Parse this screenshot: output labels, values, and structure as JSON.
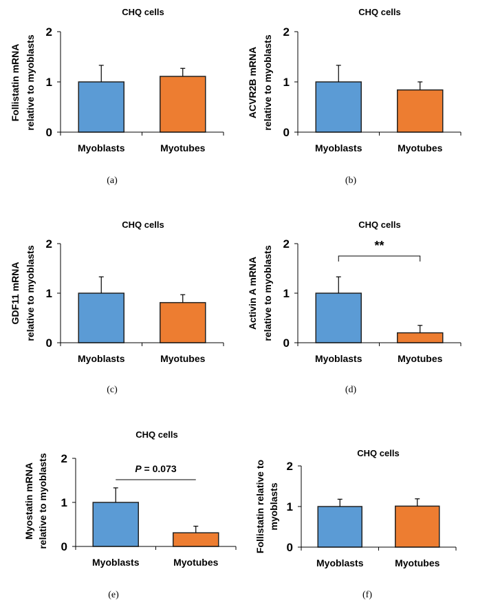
{
  "colors": {
    "myoblasts": "#5B9BD5",
    "myotubes": "#ED7D31",
    "axis": "#000000"
  },
  "chart_data": [
    {
      "type": "bar",
      "panel": "(a)",
      "title": "CHQ cells",
      "ylabel": [
        "Follistatin mRNA",
        "relative to myoblasts"
      ],
      "categories": [
        "Myoblasts",
        "Myotubes"
      ],
      "values": [
        1.0,
        1.11
      ],
      "errors": [
        0.33,
        0.16
      ],
      "ylim": [
        0,
        2
      ],
      "yticks": [
        "0",
        "1",
        "2"
      ],
      "annotation": null
    },
    {
      "type": "bar",
      "panel": "(b)",
      "title": "CHQ cells",
      "ylabel": [
        "ACVR2B mRNA",
        "relative to myoblasts"
      ],
      "categories": [
        "Myoblasts",
        "Myotubes"
      ],
      "values": [
        1.0,
        0.84
      ],
      "errors": [
        0.33,
        0.16
      ],
      "ylim": [
        0,
        2
      ],
      "yticks": [
        "0",
        "1",
        "2"
      ],
      "annotation": null
    },
    {
      "type": "bar",
      "panel": "(c)",
      "title": "CHQ cells",
      "ylabel": [
        "GDF11 mRNA",
        "relative to myoblasts"
      ],
      "categories": [
        "Myoblasts",
        "Myotubes"
      ],
      "values": [
        1.0,
        0.81
      ],
      "errors": [
        0.33,
        0.16
      ],
      "ylim": [
        0,
        2
      ],
      "yticks": [
        "0",
        "1",
        "2"
      ],
      "annotation": null
    },
    {
      "type": "bar",
      "panel": "(d)",
      "title": "CHQ cells",
      "ylabel": [
        "Activin A mRNA",
        "relative to myoblasts"
      ],
      "categories": [
        "Myoblasts",
        "Myotubes"
      ],
      "values": [
        1.0,
        0.2
      ],
      "errors": [
        0.33,
        0.15
      ],
      "ylim": [
        0,
        2
      ],
      "yticks": [
        "0",
        "1",
        "2"
      ],
      "annotation": {
        "text": "**",
        "italic_prefix": ""
      }
    },
    {
      "type": "bar",
      "panel": "(e)",
      "title": "CHQ cells",
      "ylabel": [
        "Myostatin mRNA",
        "relative to myoblasts"
      ],
      "categories": [
        "Myoblasts",
        "Myotubes"
      ],
      "values": [
        1.0,
        0.31
      ],
      "errors": [
        0.33,
        0.15
      ],
      "ylim": [
        0,
        2
      ],
      "yticks": [
        "0",
        "1",
        "2"
      ],
      "annotation": {
        "text": " = 0.073",
        "italic_prefix": "P"
      }
    },
    {
      "type": "bar",
      "panel": "(f)",
      "title": "CHQ cells",
      "ylabel": [
        "Follistatin relative to",
        "myoblasts"
      ],
      "categories": [
        "Myoblasts",
        "Myotubes"
      ],
      "values": [
        1.0,
        1.01
      ],
      "errors": [
        0.18,
        0.18
      ],
      "ylim": [
        0,
        2
      ],
      "yticks": [
        "0",
        "1",
        "2"
      ],
      "annotation": null
    }
  ]
}
